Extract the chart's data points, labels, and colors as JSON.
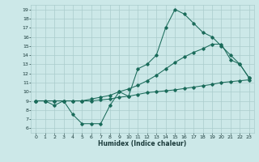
{
  "xlabel": "Humidex (Indice chaleur)",
  "bg_color": "#cce8e8",
  "grid_color": "#aacccc",
  "line_color": "#1a6b5a",
  "xlim": [
    -0.5,
    23.5
  ],
  "ylim": [
    5.5,
    19.5
  ],
  "yticks": [
    6,
    7,
    8,
    9,
    10,
    11,
    12,
    13,
    14,
    15,
    16,
    17,
    18,
    19
  ],
  "xticks": [
    0,
    1,
    2,
    3,
    4,
    5,
    6,
    7,
    8,
    9,
    10,
    11,
    12,
    13,
    14,
    15,
    16,
    17,
    18,
    19,
    20,
    21,
    22,
    23
  ],
  "line1_x": [
    0,
    1,
    2,
    3,
    4,
    5,
    6,
    7,
    8,
    9,
    10,
    11,
    12,
    13,
    14,
    15,
    16,
    17,
    18,
    19,
    20,
    21,
    22,
    23
  ],
  "line1_y": [
    9,
    9,
    8.5,
    9,
    7.5,
    6.5,
    6.5,
    6.5,
    8.5,
    10,
    9.5,
    12.5,
    13,
    14,
    17,
    19,
    18.5,
    17.5,
    16.5,
    16,
    15,
    14,
    13,
    11.5
  ],
  "line2_x": [
    0,
    1,
    2,
    3,
    4,
    5,
    6,
    7,
    8,
    9,
    10,
    11,
    12,
    13,
    14,
    15,
    16,
    17,
    18,
    19,
    20,
    21,
    22,
    23
  ],
  "line2_y": [
    9,
    9,
    9,
    9,
    9,
    9,
    9.2,
    9.4,
    9.6,
    10,
    10.3,
    10.7,
    11.2,
    11.8,
    12.5,
    13.2,
    13.8,
    14.3,
    14.7,
    15.2,
    15.2,
    13.5,
    13.0,
    11.5
  ],
  "line3_x": [
    0,
    1,
    2,
    3,
    4,
    5,
    6,
    7,
    8,
    9,
    10,
    11,
    12,
    13,
    14,
    15,
    16,
    17,
    18,
    19,
    20,
    21,
    22,
    23
  ],
  "line3_y": [
    9,
    9,
    9,
    9,
    9,
    9,
    9.0,
    9.1,
    9.2,
    9.4,
    9.5,
    9.7,
    9.9,
    10.0,
    10.1,
    10.2,
    10.35,
    10.5,
    10.65,
    10.8,
    11.0,
    11.1,
    11.2,
    11.3
  ]
}
